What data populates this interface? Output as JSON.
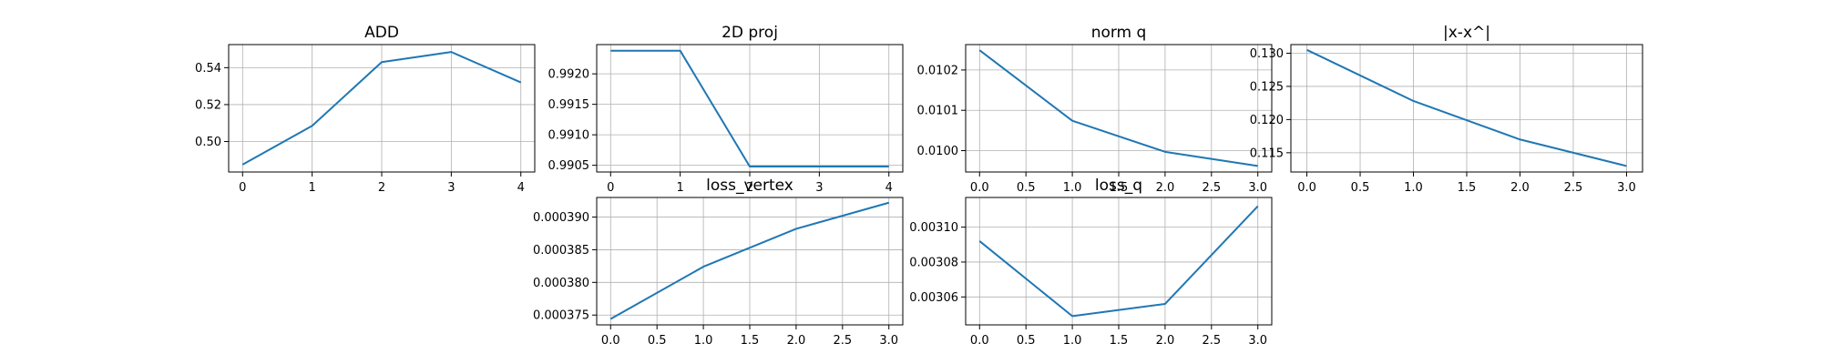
{
  "chart_data": [
    {
      "type": "line",
      "title": "ADD",
      "x": [
        0,
        1,
        2,
        3,
        4
      ],
      "y": [
        0.4875,
        0.5085,
        0.543,
        0.5485,
        0.532
      ],
      "xlim": [
        -0.2,
        4.2
      ],
      "ylim": [
        0.4835,
        0.5525
      ],
      "xticks": [
        0,
        1,
        2,
        3,
        4
      ],
      "xtick_labels": [
        "0",
        "1",
        "2",
        "3",
        "4"
      ],
      "yticks": [
        0.5,
        0.52,
        0.54
      ],
      "ytick_labels": [
        "0.50",
        "0.52",
        "0.54"
      ],
      "grid": true,
      "color": "#1f77b4"
    },
    {
      "type": "line",
      "title": "2D proj",
      "x": [
        0,
        1,
        2,
        3,
        4
      ],
      "y": [
        0.99238,
        0.99238,
        0.99048,
        0.99048,
        0.99048
      ],
      "xlim": [
        -0.2,
        4.2
      ],
      "ylim": [
        0.99039,
        0.99248
      ],
      "xticks": [
        0,
        1,
        2,
        3,
        4
      ],
      "xtick_labels": [
        "0",
        "1",
        "2",
        "3",
        "4"
      ],
      "yticks": [
        0.9905,
        0.991,
        0.9915,
        0.992
      ],
      "ytick_labels": [
        "0.9905",
        "0.9910",
        "0.9915",
        "0.9920"
      ],
      "grid": true,
      "color": "#1f77b4"
    },
    {
      "type": "line",
      "title": "norm q",
      "x": [
        0,
        1,
        2,
        3
      ],
      "y": [
        0.010249,
        0.010074,
        0.009997,
        0.009962
      ],
      "xlim": [
        -0.15,
        3.15
      ],
      "ylim": [
        0.009947,
        0.010263
      ],
      "xticks": [
        0,
        0.5,
        1,
        1.5,
        2,
        2.5,
        3
      ],
      "xtick_labels": [
        "0.0",
        "0.5",
        "1.0",
        "1.5",
        "2.0",
        "2.5",
        "3.0"
      ],
      "yticks": [
        0.01,
        0.0101,
        0.0102
      ],
      "ytick_labels": [
        "0.0100",
        "0.0101",
        "0.0102"
      ],
      "grid": true,
      "color": "#1f77b4"
    },
    {
      "type": "line",
      "title": "|x-x^|",
      "x": [
        0,
        1,
        2,
        3
      ],
      "y": [
        0.1305,
        0.1228,
        0.117,
        0.113
      ],
      "xlim": [
        -0.15,
        3.15
      ],
      "ylim": [
        0.1121,
        0.1313
      ],
      "xticks": [
        0,
        0.5,
        1,
        1.5,
        2,
        2.5,
        3
      ],
      "xtick_labels": [
        "0.0",
        "0.5",
        "1.0",
        "1.5",
        "2.0",
        "2.5",
        "3.0"
      ],
      "yticks": [
        0.115,
        0.12,
        0.125,
        0.13
      ],
      "ytick_labels": [
        "0.115",
        "0.120",
        "0.125",
        "0.130"
      ],
      "grid": true,
      "color": "#1f77b4"
    },
    {
      "type": "line",
      "title": "loss_vertex",
      "x": [
        0,
        1,
        2,
        3
      ],
      "y": [
        0.0003744,
        0.0003824,
        0.0003882,
        0.0003922
      ],
      "xlim": [
        -0.15,
        3.15
      ],
      "ylim": [
        0.0003735,
        0.000393
      ],
      "xticks": [
        0,
        0.5,
        1,
        1.5,
        2,
        2.5,
        3
      ],
      "xtick_labels": [
        "0.0",
        "0.5",
        "1.0",
        "1.5",
        "2.0",
        "2.5",
        "3.0"
      ],
      "yticks": [
        0.000375,
        0.00038,
        0.000385,
        0.00039
      ],
      "ytick_labels": [
        "0.000375",
        "0.000380",
        "0.000385",
        "0.000390"
      ],
      "grid": true,
      "color": "#1f77b4"
    },
    {
      "type": "line",
      "title": "loss_q",
      "x": [
        0,
        1,
        2,
        3
      ],
      "y": [
        0.003092,
        0.003049,
        0.003056,
        0.003112
      ],
      "xlim": [
        -0.15,
        3.15
      ],
      "ylim": [
        0.003044,
        0.003117
      ],
      "xticks": [
        0,
        0.5,
        1,
        1.5,
        2,
        2.5,
        3
      ],
      "xtick_labels": [
        "0.0",
        "0.5",
        "1.0",
        "1.5",
        "2.0",
        "2.5",
        "3.0"
      ],
      "yticks": [
        0.00306,
        0.00308,
        0.0031
      ],
      "ytick_labels": [
        "0.00306",
        "0.00308",
        "0.00310"
      ],
      "grid": true,
      "color": "#1f77b4"
    }
  ]
}
